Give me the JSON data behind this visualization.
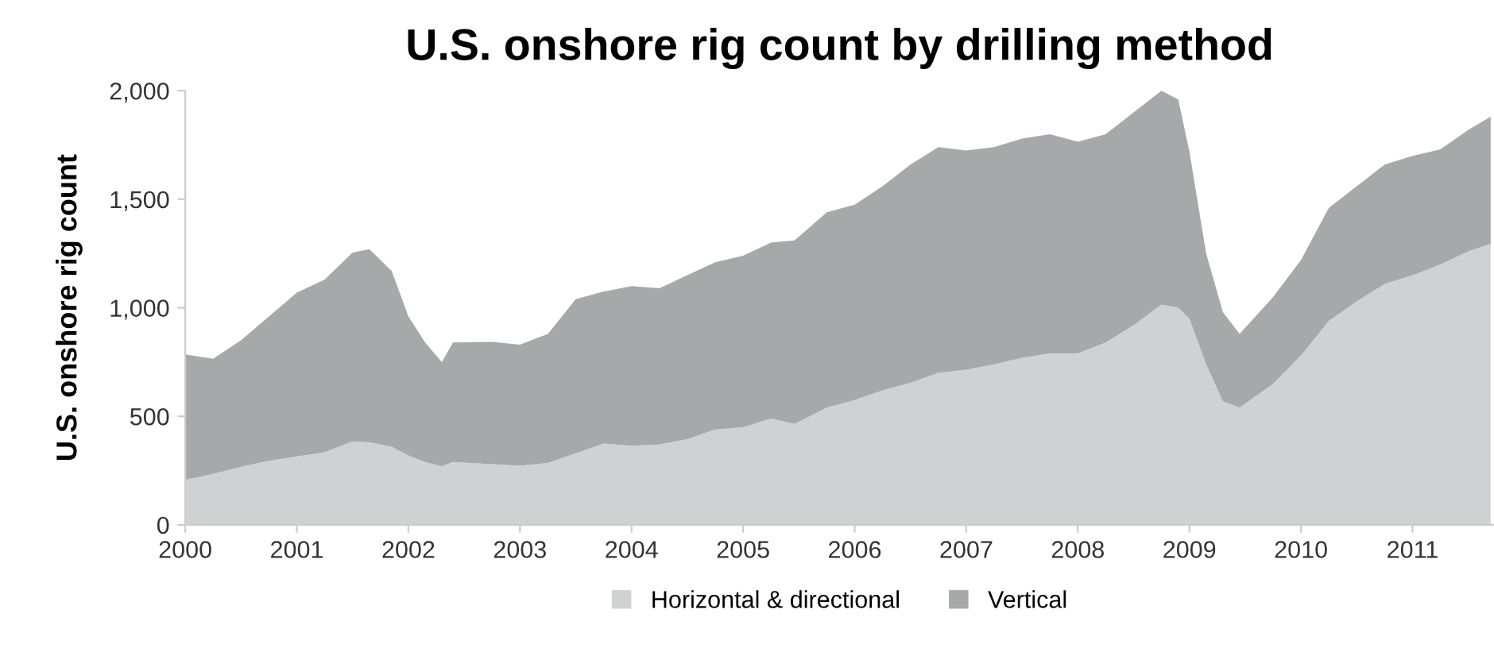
{
  "chart_data": {
    "type": "area",
    "stacked": true,
    "title": "U.S. onshore rig count by drilling method",
    "ylabel": "U.S. onshore rig count",
    "x": [
      2000.0,
      2000.25,
      2000.5,
      2000.75,
      2001.0,
      2001.25,
      2001.5,
      2001.65,
      2001.85,
      2002.0,
      2002.15,
      2002.3,
      2002.4,
      2002.75,
      2003.0,
      2003.25,
      2003.5,
      2003.75,
      2004.0,
      2004.25,
      2004.5,
      2004.75,
      2005.0,
      2005.25,
      2005.46,
      2005.75,
      2006.0,
      2006.25,
      2006.5,
      2006.75,
      2007.0,
      2007.25,
      2007.5,
      2007.75,
      2008.0,
      2008.25,
      2008.5,
      2008.75,
      2008.9,
      2009.0,
      2009.15,
      2009.3,
      2009.45,
      2009.75,
      2010.0,
      2010.25,
      2010.5,
      2010.75,
      2011.0,
      2011.25,
      2011.5,
      2011.7
    ],
    "series": [
      {
        "name": "Horizontal & directional",
        "color": "#d0d1d3",
        "values": [
          207,
          235,
          268,
          295,
          315,
          335,
          385,
          380,
          360,
          320,
          290,
          270,
          290,
          280,
          272,
          285,
          330,
          375,
          365,
          370,
          395,
          440,
          450,
          490,
          465,
          540,
          575,
          620,
          655,
          700,
          715,
          740,
          770,
          790,
          790,
          840,
          920,
          1015,
          1000,
          950,
          740,
          570,
          540,
          650,
          780,
          940,
          1030,
          1110,
          1150,
          1200,
          1260,
          1295
        ]
      },
      {
        "name": "Vertical",
        "color": "#a7a8aa",
        "values": [
          578,
          530,
          582,
          665,
          755,
          795,
          870,
          890,
          810,
          640,
          550,
          480,
          550,
          563,
          558,
          595,
          710,
          700,
          735,
          720,
          755,
          770,
          790,
          810,
          845,
          900,
          900,
          940,
          1005,
          1040,
          1010,
          1000,
          1010,
          1010,
          975,
          960,
          980,
          985,
          960,
          770,
          510,
          410,
          340,
          400,
          440,
          520,
          530,
          550,
          550,
          530,
          560,
          585
        ]
      }
    ],
    "xlim": [
      2000,
      2011.73
    ],
    "xticks": [
      2000,
      2001,
      2002,
      2003,
      2004,
      2005,
      2006,
      2007,
      2008,
      2009,
      2010,
      2011
    ],
    "ylim": [
      0,
      2000
    ],
    "yticks": [
      {
        "value": 0,
        "label": "0"
      },
      {
        "value": 500,
        "label": "500"
      },
      {
        "value": 1000,
        "label": "1,000"
      },
      {
        "value": 1500,
        "label": "1,500"
      },
      {
        "value": 2000,
        "label": "2,000"
      }
    ],
    "grid": false,
    "legend": "bottom"
  }
}
